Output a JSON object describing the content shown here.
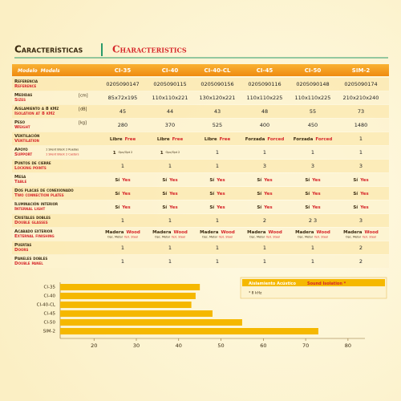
{
  "header": {
    "title_es": "Características",
    "title_en": "Characteristics"
  },
  "table": {
    "head": {
      "es": "Modelo",
      "en": "Models"
    },
    "models": [
      "CI-35",
      "CI-40",
      "CI-40-CL",
      "CI-45",
      "CI-50",
      "SIM-2"
    ],
    "rows": [
      {
        "es": "Referencia",
        "en": "Reference",
        "cells": [
          "0205090147",
          "0205090115",
          "0205090156",
          "0205090116",
          "0205090148",
          "0205090174"
        ]
      },
      {
        "es": "Medidas",
        "en": "Sizes",
        "unit": "[cm]",
        "cells": [
          "85x72x195",
          "110x110x221",
          "130x120x221",
          "110x110x225",
          "110x110x225",
          "210x210x240"
        ]
      },
      {
        "es": "Aislamiento a 8 kHz",
        "en": "Isolation at 8 kHz",
        "unit": "[dB]",
        "cells": [
          "45",
          "44",
          "43",
          "48",
          "55",
          "73"
        ]
      },
      {
        "es": "Peso",
        "en": "Weight",
        "unit": "[kg]",
        "cells": [
          "280",
          "370",
          "525",
          "400",
          "450",
          "1480"
        ]
      },
      {
        "es": "Ventilación",
        "en": "Ventilation",
        "cells": [
          {
            "es": "Libre",
            "en": "Free"
          },
          {
            "es": "Libre",
            "en": "Free"
          },
          {
            "es": "Libre",
            "en": "Free"
          },
          {
            "es": "Forzada",
            "en": "Forced"
          },
          {
            "es": "Forzada",
            "en": "Forced"
          },
          "1"
        ]
      },
      {
        "es": "Apoyo",
        "en": "Support",
        "es_note": "1 Silent Block 2 Ruedas",
        "en_note": "1 Silent Block 2 Castors",
        "cells": [
          {
            "es": "1",
            "note": "Opc/Opt 2"
          },
          {
            "es": "1",
            "note": "Opc/Opt 2"
          },
          "1",
          "1",
          "1",
          "1"
        ]
      },
      {
        "es": "Puntos de cierre",
        "en": "Locking points",
        "cells": [
          "1",
          "1",
          "1",
          "3",
          "3",
          "3"
        ]
      },
      {
        "es": "Mesa",
        "en": "Table",
        "cells": [
          {
            "es": "Sí",
            "en": "Yes"
          },
          {
            "es": "Sí",
            "en": "Yes"
          },
          {
            "es": "Sí",
            "en": "Yes"
          },
          {
            "es": "Sí",
            "en": "Yes"
          },
          {
            "es": "Sí",
            "en": "Yes"
          },
          {
            "es": "Sí",
            "en": "Yes"
          }
        ]
      },
      {
        "es": "Dos placas de conexionado",
        "en": "Two connection plates",
        "cells": [
          {
            "es": "Sí",
            "en": "Yes"
          },
          {
            "es": "Sí",
            "en": "Yes"
          },
          {
            "es": "Sí",
            "en": "Yes"
          },
          {
            "es": "Sí",
            "en": "Yes"
          },
          {
            "es": "Sí",
            "en": "Yes"
          },
          {
            "es": "Sí",
            "en": "Yes"
          }
        ]
      },
      {
        "es": "Iluminación interior",
        "en": "Internal light",
        "cells": [
          {
            "es": "Sí",
            "en": "Yes"
          },
          {
            "es": "Sí",
            "en": "Yes"
          },
          {
            "es": "Sí",
            "en": "Yes"
          },
          {
            "es": "Sí",
            "en": "Yes"
          },
          {
            "es": "Sí",
            "en": "Yes"
          },
          {
            "es": "Sí",
            "en": "Yes"
          }
        ]
      },
      {
        "es": "Cristales dobles",
        "en": "Double glasses",
        "cells": [
          "1",
          "1",
          "1",
          "2",
          "2 3",
          "3"
        ]
      },
      {
        "es": "Acabado exterior",
        "en": "External finishing",
        "cells": [
          {
            "es": "Madera",
            "en": "Wood",
            "sub_es": "Opc. Metal",
            "sub_en": "Opt. Steel"
          },
          {
            "es": "Madera",
            "en": "Wood",
            "sub_es": "Opc. Metal",
            "sub_en": "Opt. Steel"
          },
          {
            "es": "Madera",
            "en": "Wood",
            "sub_es": "Opc. Metal",
            "sub_en": "Opt. Steel"
          },
          {
            "es": "Madera",
            "en": "Wood",
            "sub_es": "Opc. Metal",
            "sub_en": "Opt. Steel"
          },
          {
            "es": "Madera",
            "en": "Wood",
            "sub_es": "Opc. Metal",
            "sub_en": "Opt. Steel"
          },
          {
            "es": "Madera",
            "en": "Wood",
            "sub_es": "Opc. Metal",
            "sub_en": "Opt. Steel"
          }
        ]
      },
      {
        "es": "Puertas",
        "en": "Doors",
        "cells": [
          "1",
          "1",
          "1",
          "1",
          "1",
          "2"
        ]
      },
      {
        "es": "Paneles dobles",
        "en": "Double panel",
        "cells": [
          "1",
          "1",
          "1",
          "1",
          "1",
          "2"
        ]
      }
    ]
  },
  "chart_data": {
    "type": "bar",
    "orientation": "horizontal",
    "categories": [
      "CI-35",
      "CI-40",
      "CI-40-CL",
      "CI-45",
      "CI-50",
      "SIM-2"
    ],
    "values": [
      45,
      44,
      43,
      48,
      55,
      73
    ],
    "color": "#f5b800",
    "xlim": [
      12,
      84
    ],
    "xticks": [
      20,
      30,
      40,
      50,
      60,
      70,
      80
    ],
    "legend_es": "Aislamiento Acústico",
    "legend_en": "Sound Isolation *",
    "note": "* 8 kHz"
  }
}
